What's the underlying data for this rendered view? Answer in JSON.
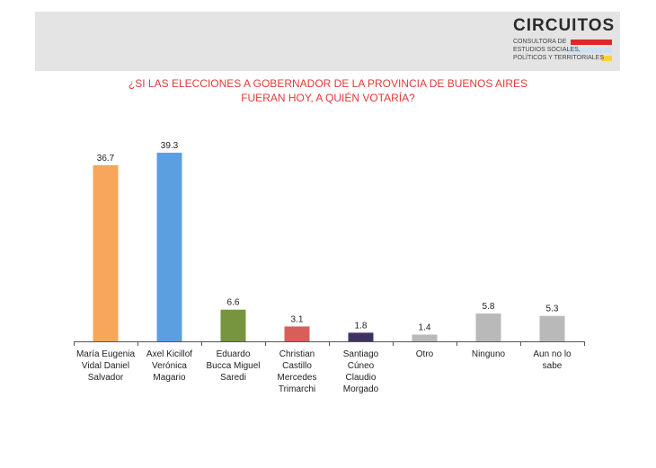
{
  "logo": {
    "name": "CIRCUITOS",
    "line1": "CONSULTORA DE",
    "line2": "ESTUDIOS SOCIALES,",
    "line3": "POLÍTICOS Y TERRITORIALES",
    "colors": [
      "#e3242b",
      "#cfe0f2",
      "#f5d33a"
    ]
  },
  "title_line1": "¿SI LAS ELECCIONES A GOBERNADOR DE LA PROVINCIA DE BUENOS AIRES",
  "title_line2": "FUERAN HOY, A QUIÉN VOTARÍA?",
  "chart_data": {
    "type": "bar",
    "title": "¿SI LAS ELECCIONES A GOBERNADOR DE LA PROVINCIA DE BUENOS AIRES FUERAN HOY, A QUIÉN VOTARÍA?",
    "categories": [
      [
        "María Eugenia",
        "Vidal Daniel",
        "Salvador"
      ],
      [
        "Axel Kicillof",
        "Verónica",
        "Magario"
      ],
      [
        "Eduardo",
        "Bucca Miguel",
        "Saredi"
      ],
      [
        "Christian",
        "Castillo",
        "Mercedes",
        "Trimarchi"
      ],
      [
        "Santiago",
        "Cúneo",
        "Claudio",
        "Morgado"
      ],
      [
        "Otro"
      ],
      [
        "Ninguno"
      ],
      [
        "Aun no lo",
        "sabe"
      ]
    ],
    "values": [
      36.7,
      39.3,
      6.6,
      3.1,
      1.8,
      1.4,
      5.8,
      5.3
    ],
    "value_labels": [
      "36.7",
      "39.3",
      "6.6",
      "3.1",
      "1.8",
      "1.4",
      "5.8",
      "5.3"
    ],
    "colors": [
      "#f7a65b",
      "#5b9fe0",
      "#77953f",
      "#d85e5a",
      "#3f3263",
      "#b9b9b9",
      "#b9b9b9",
      "#b9b9b9"
    ],
    "ylim": [
      0,
      39.3
    ],
    "xlabel": "",
    "ylabel": "",
    "grid": false,
    "legend": "none"
  }
}
